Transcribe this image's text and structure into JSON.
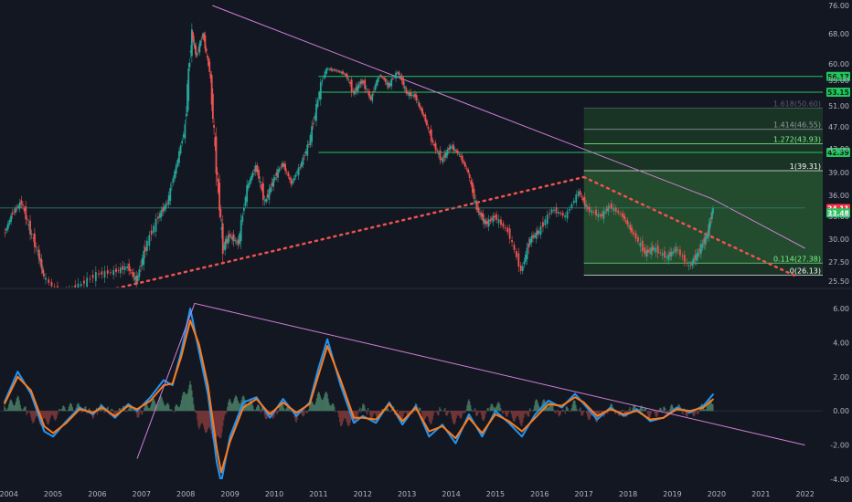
{
  "chart_data": {
    "type": "line",
    "price_panel": {
      "ylim": [
        25.5,
        76.0
      ],
      "y_ticks": [
        "76.00",
        "68.00",
        "60.00",
        "55.00",
        "51.00",
        "47.00",
        "43.00",
        "39.00",
        "36.00",
        "33.00",
        "30.00",
        "27.50",
        "25.50"
      ],
      "y_values": [
        76.0,
        68.0,
        60.0,
        55.0,
        51.0,
        47.0,
        43.0,
        39.0,
        36.0,
        33.0,
        30.0,
        27.5,
        25.5
      ],
      "series": [
        {
          "values": [
            [
              2003.9,
              30.5
            ],
            [
              2004.1,
              33.5
            ],
            [
              2004.3,
              35.0
            ],
            [
              2004.5,
              31.0
            ],
            [
              2004.7,
              28.0
            ],
            [
              2004.8,
              26.0
            ],
            [
              2005.2,
              24.0
            ],
            [
              2005.6,
              25.0
            ],
            [
              2006.0,
              26.2
            ],
            [
              2006.4,
              26.5
            ],
            [
              2006.7,
              27.0
            ],
            [
              2006.9,
              25.5
            ],
            [
              2007.1,
              29.0
            ],
            [
              2007.4,
              33.0
            ],
            [
              2007.6,
              35.0
            ],
            [
              2007.8,
              40.0
            ],
            [
              2008.0,
              47.0
            ],
            [
              2008.15,
              68.0
            ],
            [
              2008.25,
              62.0
            ],
            [
              2008.4,
              68.0
            ],
            [
              2008.55,
              58.0
            ],
            [
              2008.7,
              40.0
            ],
            [
              2008.85,
              29.0
            ],
            [
              2009.0,
              30.5
            ],
            [
              2009.2,
              29.5
            ],
            [
              2009.4,
              37.0
            ],
            [
              2009.6,
              40.0
            ],
            [
              2009.8,
              35.0
            ],
            [
              2010.0,
              38.0
            ],
            [
              2010.2,
              40.5
            ],
            [
              2010.4,
              37.5
            ],
            [
              2010.6,
              40.0
            ],
            [
              2010.8,
              44.0
            ],
            [
              2011.0,
              52.0
            ],
            [
              2011.2,
              58.5
            ],
            [
              2011.4,
              58.0
            ],
            [
              2011.6,
              57.0
            ],
            [
              2011.8,
              53.0
            ],
            [
              2012.0,
              55.0
            ],
            [
              2012.2,
              52.0
            ],
            [
              2012.4,
              56.5
            ],
            [
              2012.6,
              54.0
            ],
            [
              2012.8,
              57.5
            ],
            [
              2013.0,
              53.0
            ],
            [
              2013.2,
              52.5
            ],
            [
              2013.4,
              49.0
            ],
            [
              2013.6,
              44.0
            ],
            [
              2013.8,
              41.0
            ],
            [
              2014.0,
              43.5
            ],
            [
              2014.2,
              42.0
            ],
            [
              2014.4,
              39.0
            ],
            [
              2014.6,
              34.0
            ],
            [
              2014.8,
              32.0
            ],
            [
              2015.0,
              33.0
            ],
            [
              2015.3,
              31.0
            ],
            [
              2015.6,
              26.5
            ],
            [
              2015.8,
              30.0
            ],
            [
              2016.0,
              31.0
            ],
            [
              2016.3,
              34.0
            ],
            [
              2016.6,
              33.0
            ],
            [
              2016.9,
              36.5
            ],
            [
              2017.1,
              34.0
            ],
            [
              2017.4,
              33.0
            ],
            [
              2017.6,
              34.5
            ],
            [
              2017.9,
              33.0
            ],
            [
              2018.1,
              31.0
            ],
            [
              2018.4,
              28.5
            ],
            [
              2018.6,
              29.0
            ],
            [
              2018.9,
              28.0
            ],
            [
              2019.1,
              29.0
            ],
            [
              2019.4,
              27.0
            ],
            [
              2019.6,
              28.5
            ],
            [
              2019.8,
              30.5
            ],
            [
              2019.93,
              34.1
            ]
          ]
        }
      ],
      "horizontal_levels": [
        {
          "y": 56.17,
          "color": "#22c55e",
          "label": "56.17"
        },
        {
          "y": 53.15,
          "color": "#22c55e",
          "label": "53.15"
        },
        {
          "y": 42.39,
          "color": "#22c55e",
          "label": "42.39"
        }
      ],
      "price_badges": [
        {
          "y": 34.11,
          "label": "34.11",
          "color": "#f23645"
        },
        {
          "y": 33.48,
          "label": "33.48",
          "color": "#22c55e"
        }
      ],
      "fib_levels": [
        {
          "label": "1.618(50.60)",
          "y": 50.6,
          "color": "#5d606b"
        },
        {
          "label": "1.414(46.55)",
          "y": 46.55,
          "color": "#9598a1"
        },
        {
          "label": "1.272(43.93)",
          "y": 43.93,
          "color": "#7cf08a"
        },
        {
          "label": "1(39.31)",
          "y": 39.31,
          "color": "#ffffff"
        },
        {
          "label": "0.114(27.38)",
          "y": 27.38,
          "color": "#7cf08a"
        },
        {
          "label": "0(26.13)",
          "y": 26.13,
          "color": "#ffffff"
        }
      ],
      "fib_box": {
        "x_start": 2017.0,
        "x_end": 2022.0,
        "y_top": 50.6,
        "y_bottom": 26.13
      },
      "trendlines": [
        {
          "kind": "solid-pink",
          "points": [
            [
              2008.6,
              76.0
            ],
            [
              2019.9,
              35.5
            ],
            [
              2022.0,
              29.0
            ]
          ]
        },
        {
          "kind": "dotted-red",
          "points": [
            [
              2005.3,
              23.5
            ],
            [
              2017.0,
              38.4
            ]
          ]
        },
        {
          "kind": "dotted-red",
          "points": [
            [
              2017.0,
              38.4
            ],
            [
              2021.8,
              26.0
            ]
          ]
        },
        {
          "kind": "thin-horizontal",
          "points": [
            [
              2003.8,
              34.2
            ],
            [
              2022.0,
              34.2
            ]
          ]
        }
      ]
    },
    "oscillator_panel": {
      "ylim": [
        -4.0,
        6.0
      ],
      "y_ticks": [
        "6.00",
        "4.00",
        "2.00",
        "0.00",
        "-2.00",
        "-4.00"
      ],
      "y_values": [
        6.0,
        4.0,
        2.0,
        0.0,
        -2.0,
        -4.0
      ],
      "series": [
        {
          "color": "#2196f3",
          "values": [
            [
              2003.9,
              0.5
            ],
            [
              2004.2,
              2.3
            ],
            [
              2004.5,
              1.0
            ],
            [
              2004.8,
              -1.2
            ],
            [
              2005.0,
              -1.5
            ],
            [
              2005.3,
              -0.6
            ],
            [
              2005.6,
              0.2
            ],
            [
              2005.9,
              -0.2
            ],
            [
              2006.1,
              0.3
            ],
            [
              2006.4,
              -0.4
            ],
            [
              2006.7,
              0.4
            ],
            [
              2006.9,
              0.0
            ],
            [
              2007.2,
              0.8
            ],
            [
              2007.5,
              1.8
            ],
            [
              2007.7,
              1.5
            ],
            [
              2007.9,
              3.5
            ],
            [
              2008.1,
              6.0
            ],
            [
              2008.3,
              3.5
            ],
            [
              2008.5,
              1.0
            ],
            [
              2008.7,
              -3.0
            ],
            [
              2008.8,
              -4.2
            ],
            [
              2009.0,
              -1.5
            ],
            [
              2009.3,
              0.5
            ],
            [
              2009.6,
              0.8
            ],
            [
              2009.9,
              -0.4
            ],
            [
              2010.2,
              0.7
            ],
            [
              2010.5,
              -0.3
            ],
            [
              2010.8,
              0.5
            ],
            [
              2011.0,
              2.5
            ],
            [
              2011.2,
              4.2
            ],
            [
              2011.5,
              1.5
            ],
            [
              2011.8,
              -0.7
            ],
            [
              2012.0,
              -0.3
            ],
            [
              2012.3,
              -0.7
            ],
            [
              2012.6,
              0.5
            ],
            [
              2012.9,
              -0.8
            ],
            [
              2013.2,
              0.3
            ],
            [
              2013.5,
              -1.5
            ],
            [
              2013.8,
              -0.8
            ],
            [
              2014.1,
              -1.9
            ],
            [
              2014.4,
              -0.2
            ],
            [
              2014.7,
              -1.5
            ],
            [
              2015.0,
              0.0
            ],
            [
              2015.3,
              -0.7
            ],
            [
              2015.6,
              -1.5
            ],
            [
              2015.9,
              -0.2
            ],
            [
              2016.2,
              0.6
            ],
            [
              2016.5,
              0.2
            ],
            [
              2016.8,
              1.0
            ],
            [
              2017.0,
              0.4
            ],
            [
              2017.3,
              -0.5
            ],
            [
              2017.6,
              0.2
            ],
            [
              2017.9,
              -0.3
            ],
            [
              2018.2,
              0.1
            ],
            [
              2018.5,
              -0.6
            ],
            [
              2018.8,
              -0.4
            ],
            [
              2019.1,
              0.2
            ],
            [
              2019.4,
              -0.1
            ],
            [
              2019.7,
              0.3
            ],
            [
              2019.93,
              1.0
            ]
          ]
        },
        {
          "color": "#ff7a1a",
          "values": [
            [
              2003.9,
              0.4
            ],
            [
              2004.2,
              2.0
            ],
            [
              2004.5,
              1.2
            ],
            [
              2004.8,
              -0.9
            ],
            [
              2005.0,
              -1.3
            ],
            [
              2005.3,
              -0.7
            ],
            [
              2005.6,
              0.1
            ],
            [
              2005.9,
              -0.1
            ],
            [
              2006.1,
              0.2
            ],
            [
              2006.4,
              -0.3
            ],
            [
              2006.7,
              0.3
            ],
            [
              2006.9,
              0.1
            ],
            [
              2007.2,
              0.6
            ],
            [
              2007.5,
              1.5
            ],
            [
              2007.7,
              1.6
            ],
            [
              2007.9,
              3.2
            ],
            [
              2008.1,
              5.3
            ],
            [
              2008.3,
              3.9
            ],
            [
              2008.5,
              1.5
            ],
            [
              2008.7,
              -2.2
            ],
            [
              2008.8,
              -3.6
            ],
            [
              2009.0,
              -1.8
            ],
            [
              2009.3,
              0.2
            ],
            [
              2009.6,
              0.7
            ],
            [
              2009.9,
              -0.2
            ],
            [
              2010.2,
              0.5
            ],
            [
              2010.5,
              -0.1
            ],
            [
              2010.8,
              0.4
            ],
            [
              2011.0,
              2.1
            ],
            [
              2011.2,
              3.8
            ],
            [
              2011.5,
              1.8
            ],
            [
              2011.8,
              -0.4
            ],
            [
              2012.0,
              -0.4
            ],
            [
              2012.3,
              -0.5
            ],
            [
              2012.6,
              0.4
            ],
            [
              2012.9,
              -0.6
            ],
            [
              2013.2,
              0.2
            ],
            [
              2013.5,
              -1.2
            ],
            [
              2013.8,
              -0.9
            ],
            [
              2014.1,
              -1.6
            ],
            [
              2014.4,
              -0.4
            ],
            [
              2014.7,
              -1.3
            ],
            [
              2015.0,
              -0.2
            ],
            [
              2015.3,
              -0.6
            ],
            [
              2015.6,
              -1.2
            ],
            [
              2015.9,
              -0.4
            ],
            [
              2016.2,
              0.4
            ],
            [
              2016.5,
              0.3
            ],
            [
              2016.8,
              0.8
            ],
            [
              2017.0,
              0.5
            ],
            [
              2017.3,
              -0.3
            ],
            [
              2017.6,
              0.1
            ],
            [
              2017.9,
              -0.2
            ],
            [
              2018.2,
              0.0
            ],
            [
              2018.5,
              -0.5
            ],
            [
              2018.8,
              -0.4
            ],
            [
              2019.1,
              0.1
            ],
            [
              2019.4,
              0.0
            ],
            [
              2019.7,
              0.2
            ],
            [
              2019.93,
              0.7
            ]
          ]
        }
      ],
      "trendline": [
        [
          2006.9,
          -2.8
        ],
        [
          2008.2,
          6.3
        ],
        [
          2022.0,
          -2.0
        ]
      ]
    },
    "x_axis": {
      "ticks": [
        "2004",
        "2005",
        "2006",
        "2007",
        "2008",
        "2009",
        "2010",
        "2011",
        "2012",
        "2013",
        "2014",
        "2015",
        "2016",
        "2017",
        "2018",
        "2019",
        "2020",
        "2021",
        "2022"
      ],
      "values": [
        2004,
        2005,
        2006,
        2007,
        2008,
        2009,
        2010,
        2011,
        2012,
        2013,
        2014,
        2015,
        2016,
        2017,
        2018,
        2019,
        2020,
        2021,
        2022
      ],
      "xlim": [
        2003.8,
        2022.4
      ]
    }
  }
}
